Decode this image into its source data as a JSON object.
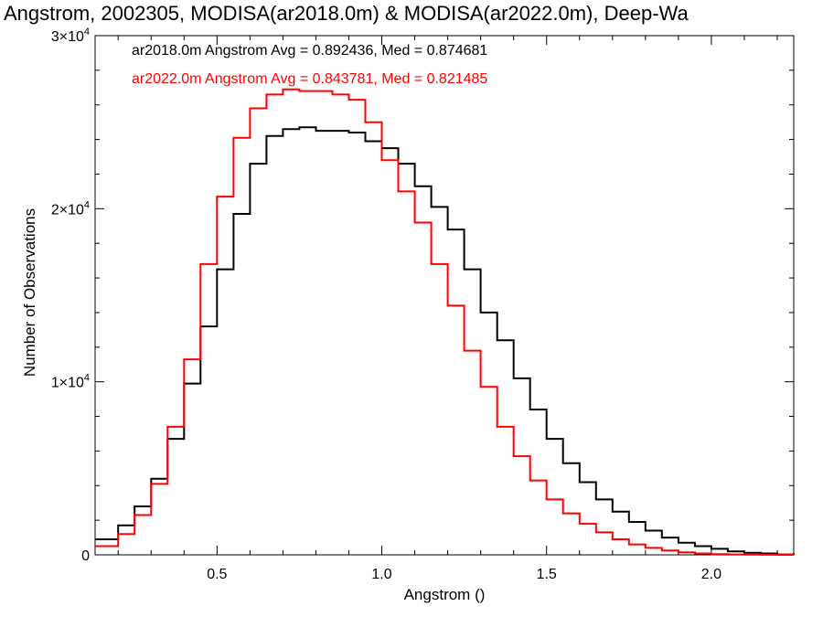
{
  "chart_data": {
    "type": "line",
    "title": "Angstrom, 2002305, MODISA(ar2018.0m) & MODISA(ar2022.0m), Deep-Wa",
    "xlabel": "Angstrom ()",
    "ylabel": "Number of Observations",
    "xlim": [
      0.13,
      2.25
    ],
    "ylim": [
      0,
      30000
    ],
    "x_ticks": [
      {
        "value": 0.5,
        "label": "0.5"
      },
      {
        "value": 1.0,
        "label": "1.0"
      },
      {
        "value": 1.5,
        "label": "1.5"
      },
      {
        "value": 2.0,
        "label": "2.0"
      }
    ],
    "y_ticks": [
      {
        "value": 0,
        "mant": "0",
        "exp": ""
      },
      {
        "value": 10000,
        "mant": "1×10",
        "exp": "4"
      },
      {
        "value": 20000,
        "mant": "2×10",
        "exp": "4"
      },
      {
        "value": 30000,
        "mant": "3×10",
        "exp": "4"
      }
    ],
    "grid": false,
    "annotations": [
      {
        "text": "ar2018.0m Angstrom Avg = 0.892436, Med = 0.874681",
        "color": "#000000"
      },
      {
        "text": "ar2022.0m Angstrom Avg = 0.843781, Med = 0.821485",
        "color": "#ff0000"
      }
    ],
    "series": [
      {
        "color": "#000000",
        "x": [
          0.13,
          0.2,
          0.25,
          0.3,
          0.35,
          0.4,
          0.45,
          0.5,
          0.55,
          0.6,
          0.65,
          0.7,
          0.75,
          0.8,
          0.85,
          0.9,
          0.95,
          1.0,
          1.05,
          1.1,
          1.15,
          1.2,
          1.25,
          1.3,
          1.35,
          1.4,
          1.45,
          1.5,
          1.55,
          1.6,
          1.65,
          1.7,
          1.75,
          1.8,
          1.85,
          1.9,
          1.95,
          2.0,
          2.05,
          2.1,
          2.15,
          2.2,
          2.25
        ],
        "y": [
          900,
          1700,
          2800,
          4400,
          6700,
          9900,
          13200,
          16500,
          19700,
          22600,
          24200,
          24600,
          24700,
          24500,
          24500,
          24400,
          23900,
          23500,
          22600,
          21300,
          20100,
          18800,
          16500,
          14000,
          12400,
          10200,
          8400,
          6700,
          5300,
          4200,
          3200,
          2500,
          1900,
          1400,
          1000,
          700,
          500,
          350,
          200,
          120,
          80,
          20,
          0
        ]
      },
      {
        "color": "#ff0000",
        "x": [
          0.13,
          0.2,
          0.25,
          0.3,
          0.35,
          0.4,
          0.45,
          0.5,
          0.55,
          0.6,
          0.65,
          0.7,
          0.75,
          0.8,
          0.85,
          0.9,
          0.95,
          1.0,
          1.05,
          1.1,
          1.15,
          1.2,
          1.25,
          1.3,
          1.35,
          1.4,
          1.45,
          1.5,
          1.55,
          1.6,
          1.65,
          1.7,
          1.75,
          1.8,
          1.85,
          1.9,
          1.95,
          2.0,
          2.05,
          2.1,
          2.15,
          2.2,
          2.25
        ],
        "y": [
          500,
          1200,
          2300,
          4100,
          7400,
          11300,
          16800,
          20700,
          24100,
          25800,
          26600,
          26900,
          26800,
          26800,
          26600,
          26300,
          25000,
          22800,
          21000,
          19200,
          16800,
          14400,
          11800,
          9700,
          7400,
          5700,
          4300,
          3200,
          2400,
          1800,
          1300,
          900,
          600,
          400,
          250,
          150,
          80,
          40,
          20,
          10,
          5,
          0,
          0
        ]
      }
    ]
  }
}
